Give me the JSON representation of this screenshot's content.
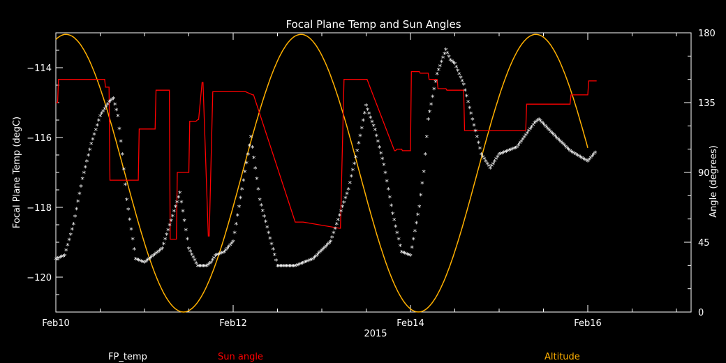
{
  "chart_data": {
    "type": "line",
    "title": "Focal Plane Temp and Sun Angles",
    "xlabel": "2015",
    "ylabel_left": "Focal Plane Temp (degC)",
    "ylabel_right": "Angle (degrees)",
    "x_ticks": [
      "Feb10",
      "Feb12",
      "Feb14",
      "Feb16"
    ],
    "x_range_days": [
      0,
      7
    ],
    "y_left_range": [
      -121,
      -113
    ],
    "y_left_ticks": [
      -114,
      -116,
      -118,
      -120
    ],
    "y_right_range": [
      0,
      180
    ],
    "y_right_ticks": [
      0,
      45,
      90,
      135,
      180
    ],
    "legend": [
      {
        "label": "FP_temp",
        "color": "#ffffff"
      },
      {
        "label": "Sun angle",
        "color": "#ff0000"
      },
      {
        "label": "Altitude",
        "color": "#ffb000"
      }
    ],
    "series": [
      {
        "name": "FP_temp",
        "axis": "left",
        "marker": "star",
        "color": "#ffffff",
        "x": [
          0.0,
          0.1,
          0.2,
          0.3,
          0.4,
          0.5,
          0.6,
          0.65,
          0.7,
          0.75,
          0.8,
          0.9,
          1.0,
          1.2,
          1.4,
          1.5,
          1.6,
          1.7,
          1.75,
          1.8,
          1.9,
          2.0,
          2.1,
          2.2,
          2.3,
          2.5,
          2.7,
          2.9,
          3.1,
          3.3,
          3.4,
          3.5,
          3.6,
          3.7,
          3.8,
          3.9,
          4.0,
          4.1,
          4.15,
          4.2,
          4.3,
          4.4,
          4.45,
          4.5,
          4.6,
          4.7,
          4.8,
          4.9,
          5.0,
          5.2,
          5.4,
          5.45,
          5.6,
          5.8,
          6.0,
          6.1
        ],
        "values": [
          -119.5,
          -119.4,
          -118.5,
          -117.2,
          -116.2,
          -115.4,
          -115.0,
          -114.9,
          -115.4,
          -116.5,
          -117.8,
          -119.5,
          -119.6,
          -119.2,
          -117.6,
          -119.2,
          -119.7,
          -119.7,
          -119.6,
          -119.4,
          -119.3,
          -119.0,
          -117.5,
          -116.0,
          -117.8,
          -119.7,
          -119.7,
          -119.5,
          -119.0,
          -117.5,
          -116.4,
          -115.1,
          -115.8,
          -116.8,
          -118.2,
          -119.3,
          -119.4,
          -118.0,
          -117.0,
          -115.5,
          -114.2,
          -113.5,
          -113.8,
          -113.9,
          -114.5,
          -115.5,
          -116.5,
          -116.9,
          -116.5,
          -116.3,
          -115.6,
          -115.5,
          -115.9,
          -116.4,
          -116.7,
          -116.4
        ]
      },
      {
        "name": "Sun angle",
        "axis": "right",
        "color": "#ff0000",
        "x": [
          0.0,
          0.02,
          0.03,
          0.55,
          0.56,
          0.6,
          0.61,
          0.93,
          0.94,
          1.12,
          1.13,
          1.28,
          1.29,
          1.36,
          1.37,
          1.5,
          1.51,
          1.55,
          1.56,
          1.58,
          1.6,
          1.61,
          1.65,
          1.66,
          1.72,
          1.73,
          1.77,
          1.78,
          2.13,
          2.14,
          2.22,
          2.23,
          2.7,
          2.71,
          2.78,
          2.79,
          3.2,
          3.21,
          3.25,
          3.26,
          3.5,
          3.51,
          3.82,
          3.83,
          3.85,
          3.9,
          3.91,
          4.0,
          4.01,
          4.1,
          4.11,
          4.2,
          4.21,
          4.26,
          4.27,
          4.3,
          4.31,
          4.4,
          4.41,
          4.6,
          4.61,
          4.9,
          4.91,
          5.3,
          5.31,
          5.6,
          5.61,
          5.8,
          5.81,
          6.0,
          6.01,
          6.1
        ],
        "values": [
          135,
          135,
          150,
          150,
          145,
          145,
          85,
          85,
          118,
          118,
          143,
          143,
          47,
          47,
          90,
          90,
          123,
          123,
          123,
          123,
          124,
          124,
          148,
          148,
          49,
          49,
          142,
          142,
          142,
          142,
          140,
          140,
          58,
          58,
          58,
          58,
          54,
          54,
          150,
          150,
          150,
          150,
          104,
          104,
          105,
          105,
          104,
          104,
          155,
          155,
          154,
          154,
          150,
          150,
          150,
          150,
          144,
          144,
          143,
          143,
          117,
          117,
          117,
          117,
          134,
          134,
          134,
          134,
          140,
          140,
          149,
          149
        ]
      },
      {
        "name": "Altitude",
        "axis": "right",
        "color": "#ffb000",
        "period_days": 2.65,
        "min_at_days": 1.44,
        "amplitude": [
          0,
          179
        ],
        "x_end": 6.0
      }
    ]
  }
}
